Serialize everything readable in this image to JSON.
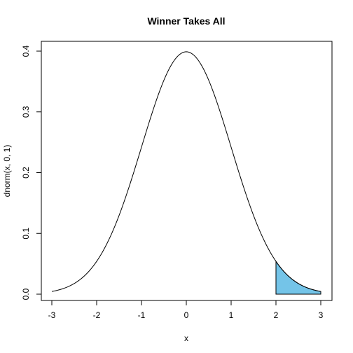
{
  "chart_data": {
    "type": "line",
    "title": "Winner Takes All",
    "xlabel": "x",
    "ylabel": "dnorm(x, 0, 1)",
    "xlim": [
      -3,
      3
    ],
    "ylim": [
      0,
      0.4
    ],
    "x_ticks": [
      "-3",
      "-2",
      "-1",
      "0",
      "1",
      "2",
      "3"
    ],
    "y_ticks": [
      "0.0",
      "0.1",
      "0.2",
      "0.3",
      "0.4"
    ],
    "series": [
      {
        "function": "dnorm",
        "mean": 0,
        "sd": 1,
        "x_range": [
          -3,
          3
        ]
      }
    ],
    "shaded_region": {
      "x_from": 2,
      "x_to": 3,
      "fill": "#74c4e8"
    },
    "grid": false,
    "legend": "none"
  }
}
